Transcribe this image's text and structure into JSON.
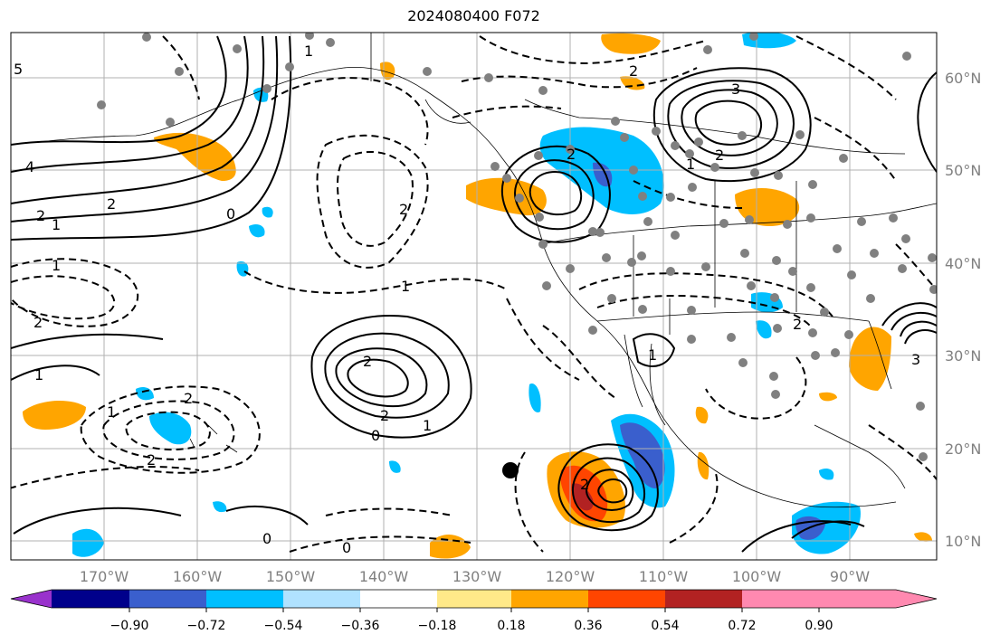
{
  "title": "2024080400 F072",
  "map": {
    "lon_ticks": [
      "170°W",
      "160°W",
      "150°W",
      "140°W",
      "130°W",
      "120°W",
      "110°W",
      "100°W",
      "90°W"
    ],
    "lat_ticks": [
      "60°N",
      "50°N",
      "40°N",
      "30°N",
      "20°N",
      "10°N"
    ],
    "contour_labels": {
      "solid": [
        "5",
        "4",
        "2",
        "1",
        "0",
        "2",
        "2",
        "0",
        "1",
        "2",
        "3",
        "2",
        "1",
        "2",
        "3",
        "0",
        "1",
        "2",
        "1"
      ],
      "dashed": [
        "1",
        "2",
        "2",
        "1",
        "2",
        "2",
        "2",
        "2",
        "1",
        "1",
        "0"
      ]
    },
    "station_marker": "black-dot"
  },
  "colorbar": {
    "ticks": [
      "−0.90",
      "−0.72",
      "−0.54",
      "−0.36",
      "−0.18",
      "0.18",
      "0.36",
      "0.54",
      "0.72",
      "0.90"
    ],
    "colors": [
      "#9932cc",
      "#00008b",
      "#3a5fcd",
      "#00bfff",
      "#b0e2ff",
      "#ffffff",
      "#ffe989",
      "#ffa500",
      "#ff4500",
      "#b22222",
      "#ff89b0"
    ]
  },
  "colors": {
    "land_border": "#000000",
    "grid": "#b0b0b0",
    "station": "#808080",
    "tick_text": "#808080"
  }
}
